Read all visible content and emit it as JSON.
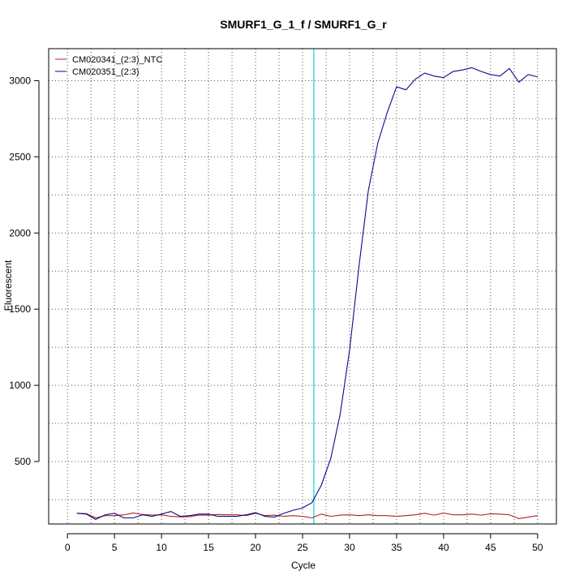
{
  "chart_data": {
    "type": "line",
    "title": "SMURF1_G_1_f / SMURF1_G_r",
    "xlabel": "Cycle",
    "ylabel": "Fluorescent",
    "xlim": [
      -2,
      52
    ],
    "ylim": [
      90,
      3210
    ],
    "x_ticks": [
      0,
      5,
      10,
      15,
      20,
      25,
      30,
      35,
      40,
      45,
      50
    ],
    "y_ticks": [
      500,
      1000,
      1500,
      2000,
      2500,
      3000
    ],
    "grid": true,
    "threshold_cycle": 26.2,
    "threshold_color": "#00d6e6",
    "legend_position": "top-left",
    "series": [
      {
        "name": "CM020341_(2:3)_NTC",
        "color": "#b22222",
        "x": [
          1,
          2,
          3,
          4,
          5,
          6,
          7,
          8,
          9,
          10,
          11,
          12,
          13,
          14,
          15,
          16,
          17,
          18,
          19,
          20,
          21,
          22,
          23,
          24,
          25,
          26,
          27,
          28,
          29,
          30,
          31,
          32,
          33,
          34,
          35,
          36,
          37,
          38,
          39,
          40,
          41,
          42,
          43,
          44,
          45,
          46,
          47,
          48,
          49,
          50
        ],
        "y": [
          160,
          158,
          130,
          145,
          145,
          150,
          162,
          152,
          148,
          150,
          140,
          137,
          138,
          148,
          148,
          152,
          150,
          150,
          145,
          160,
          145,
          148,
          140,
          145,
          140,
          130,
          155,
          140,
          148,
          150,
          145,
          150,
          145,
          145,
          140,
          145,
          150,
          160,
          148,
          162,
          150,
          150,
          155,
          148,
          157,
          155,
          150,
          125,
          135,
          145
        ]
      },
      {
        "name": "CM020351_(2:3)",
        "color": "#0a0a8c",
        "x": [
          1,
          2,
          3,
          4,
          5,
          6,
          7,
          8,
          9,
          10,
          11,
          12,
          13,
          14,
          15,
          16,
          17,
          18,
          19,
          20,
          21,
          22,
          23,
          24,
          25,
          26,
          27,
          28,
          29,
          30,
          31,
          32,
          33,
          34,
          35,
          36,
          37,
          38,
          39,
          40,
          41,
          42,
          43,
          44,
          45,
          46,
          47,
          48,
          49,
          50
        ],
        "y": [
          160,
          155,
          120,
          150,
          160,
          130,
          130,
          150,
          140,
          155,
          172,
          140,
          145,
          155,
          155,
          140,
          140,
          140,
          150,
          165,
          140,
          135,
          160,
          180,
          195,
          230,
          345,
          520,
          810,
          1230,
          1780,
          2280,
          2590,
          2790,
          2960,
          2940,
          3010,
          3050,
          3030,
          3020,
          3060,
          3070,
          3085,
          3060,
          3040,
          3030,
          3080,
          2990,
          3040,
          3025
        ]
      }
    ]
  }
}
